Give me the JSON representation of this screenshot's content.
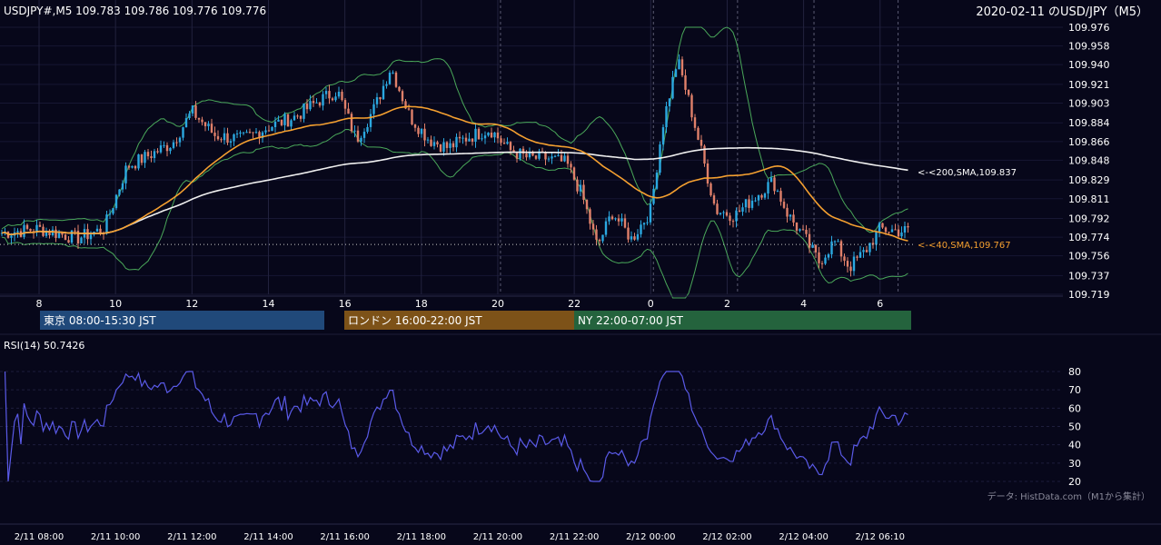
{
  "header": {
    "symbol_line": "USDJPY#,M5 109.783 109.786 109.776 109.776",
    "title_right": "2020-02-11 のUSD/JPY（M5）"
  },
  "sessions": [
    {
      "label": "東京 08:00-15:30 JST",
      "color": "#20497a"
    },
    {
      "label": "ロンドン 16:00-22:00 JST",
      "color": "#7d5218"
    },
    {
      "label": "NY 22:00-07:00 JST",
      "color": "#24633d"
    }
  ],
  "rsi_panel": {
    "label": "RSI(14) 50.7426",
    "source_note": "データ: HistData.com（M1から集計）"
  },
  "colors": {
    "background": "#07071a",
    "bull": "#2ba8e0",
    "bear": "#e0806a",
    "sma40": "#f5a030",
    "sma200": "#f0f0f0",
    "bollinger": "#4aa85a",
    "rsi": "#5a5ae8"
  },
  "chart_data": [
    {
      "type": "candlestick",
      "xlabel": "",
      "ylabel": "",
      "x_ticks": [
        "8",
        "10",
        "12",
        "14",
        "16",
        "18",
        "20",
        "22",
        "0",
        "2",
        "4",
        "6"
      ],
      "y_ticks": [
        "109.976",
        "109.958",
        "109.940",
        "109.921",
        "109.903",
        "109.884",
        "109.866",
        "109.848",
        "109.829",
        "109.811",
        "109.792",
        "109.774",
        "109.756",
        "109.737",
        "109.719"
      ],
      "ylim": [
        109.719,
        109.976
      ],
      "grid": true,
      "last_close": 109.776,
      "overlays": [
        {
          "name": "<200,SMA,",
          "value": 109.837,
          "label": "<-<200,SMA,109.837"
        },
        {
          "name": "<40,SMA,",
          "value": 109.767,
          "label": "<-<40,SMA,109.767"
        }
      ],
      "price_anchors_by_hour": [
        [
          7.0,
          109.778
        ],
        [
          8.0,
          109.782
        ],
        [
          9.0,
          109.773
        ],
        [
          9.7,
          109.782
        ],
        [
          10.3,
          109.842
        ],
        [
          11.0,
          109.855
        ],
        [
          11.5,
          109.865
        ],
        [
          12.0,
          109.895
        ],
        [
          12.6,
          109.872
        ],
        [
          13.3,
          109.868
        ],
        [
          14.0,
          109.88
        ],
        [
          14.7,
          109.89
        ],
        [
          15.3,
          109.905
        ],
        [
          15.8,
          109.915
        ],
        [
          16.3,
          109.868
        ],
        [
          16.8,
          109.9
        ],
        [
          17.2,
          109.938
        ],
        [
          17.7,
          109.89
        ],
        [
          18.2,
          109.868
        ],
        [
          18.7,
          109.86
        ],
        [
          19.2,
          109.87
        ],
        [
          19.8,
          109.878
        ],
        [
          20.3,
          109.858
        ],
        [
          20.8,
          109.85
        ],
        [
          21.3,
          109.85
        ],
        [
          21.8,
          109.845
        ],
        [
          22.2,
          109.815
        ],
        [
          22.6,
          109.765
        ],
        [
          23.0,
          109.798
        ],
        [
          23.5,
          109.772
        ],
        [
          24.0,
          109.8
        ],
        [
          24.3,
          109.88
        ],
        [
          24.7,
          109.945
        ],
        [
          25.0,
          109.905
        ],
        [
          25.3,
          109.86
        ],
        [
          25.7,
          109.8
        ],
        [
          26.2,
          109.795
        ],
        [
          26.7,
          109.812
        ],
        [
          27.2,
          109.828
        ],
        [
          27.6,
          109.795
        ],
        [
          28.0,
          109.775
        ],
        [
          28.4,
          109.75
        ],
        [
          28.8,
          109.77
        ],
        [
          29.2,
          109.745
        ],
        [
          29.6,
          109.76
        ],
        [
          30.0,
          109.782
        ],
        [
          30.5,
          109.78
        ]
      ]
    },
    {
      "type": "line",
      "series": [
        {
          "name": "RSI(14)",
          "last": 50.7426
        }
      ],
      "y_ticks": [
        "80",
        "70",
        "60",
        "50",
        "40",
        "30",
        "20"
      ],
      "ylim": [
        20,
        80
      ],
      "x_ticks": [
        "2/11 08:00",
        "2/11 10:00",
        "2/11 12:00",
        "2/11 14:00",
        "2/11 16:00",
        "2/11 18:00",
        "2/11 20:00",
        "2/11 22:00",
        "2/12 00:00",
        "2/12 02:00",
        "2/12 04:00",
        "2/12 06:10"
      ],
      "grid": true
    }
  ]
}
